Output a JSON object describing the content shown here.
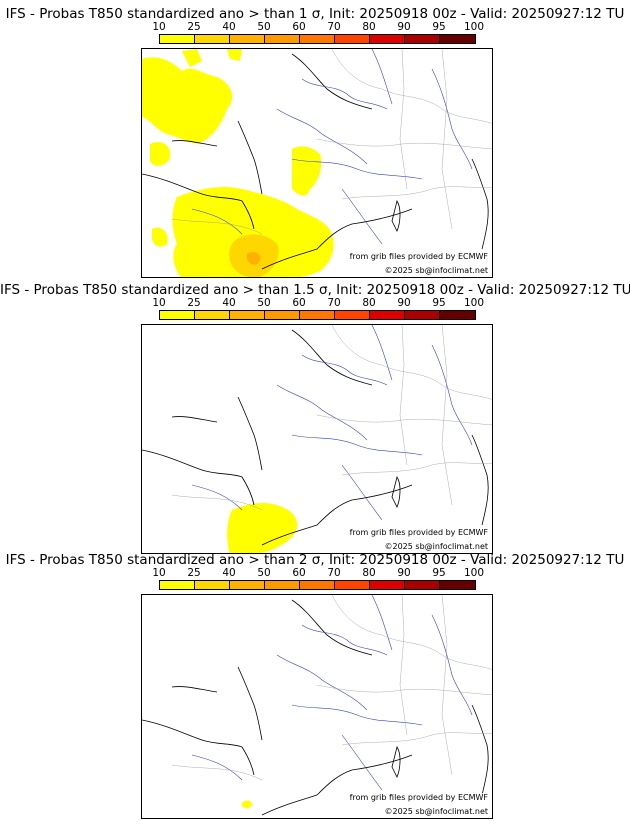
{
  "colorbar": {
    "ticks": [
      "10",
      "25",
      "40",
      "50",
      "60",
      "70",
      "80",
      "90",
      "95",
      "100"
    ],
    "colors": [
      "#ffff00",
      "#ffd700",
      "#ffb000",
      "#ff9900",
      "#ff7700",
      "#ff4400",
      "#dd0000",
      "#aa0000",
      "#660000"
    ]
  },
  "panels": [
    {
      "title": "IFS - Probas T850  standardized ano > than 1 σ, Init: 20250918 00z - Valid: 20250927:12 TU",
      "source": "from grib files provided by ECMWF",
      "copyright": "©2025 sb@infoclimat.net"
    },
    {
      "title": "IFS - Probas T850  standardized ano > than 1.5 σ, Init: 20250918 00z - Valid: 20250927:12 TU",
      "source": "from grib files provided by ECMWF",
      "copyright": "©2025 sb@infoclimat.net"
    },
    {
      "title": "IFS - Probas T850  standardized ano > than 2 σ, Init: 20250918 00z - Valid: 20250927:12 TU",
      "source": "from grib files provided by ECMWF",
      "copyright": "©2025 sb@infoclimat.net"
    }
  ]
}
